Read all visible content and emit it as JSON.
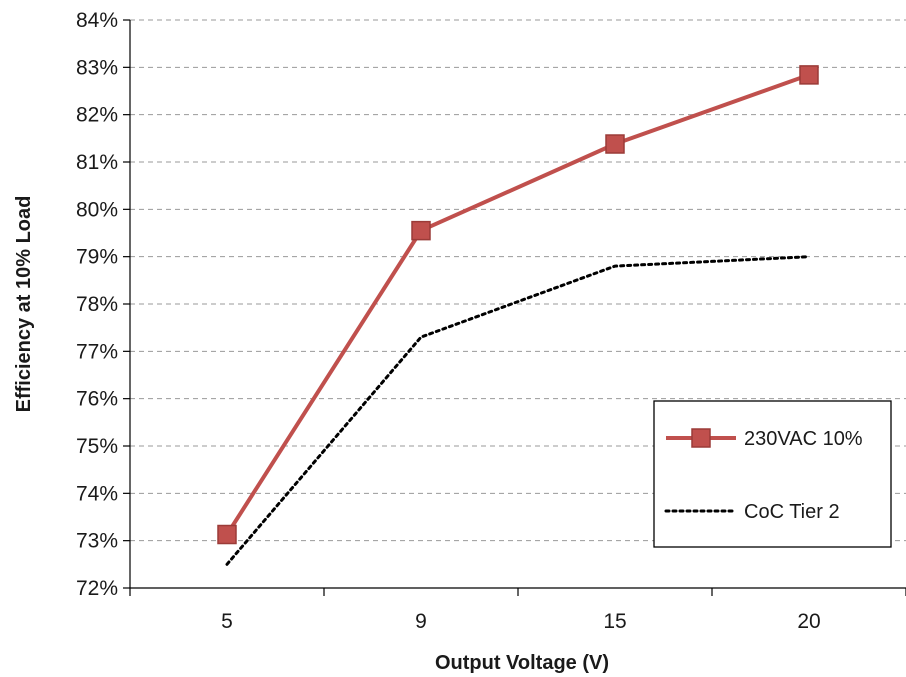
{
  "chart_data": {
    "type": "line",
    "title": "",
    "xlabel": "Output Voltage (V)",
    "ylabel": "Efficiency at 10% Load",
    "categories": [
      "5",
      "9",
      "15",
      "20"
    ],
    "ylim": [
      72,
      84
    ],
    "yticks": [
      72,
      73,
      74,
      75,
      76,
      77,
      78,
      79,
      80,
      81,
      82,
      83,
      84
    ],
    "ytick_labels": [
      "72%",
      "73%",
      "74%",
      "75%",
      "76%",
      "77%",
      "78%",
      "79%",
      "80%",
      "81%",
      "82%",
      "83%",
      "84%"
    ],
    "grid": "horizontal dashed",
    "legend_position": "bottom-right",
    "series": [
      {
        "name": "230VAC 10%",
        "values": [
          73.13,
          79.55,
          81.38,
          82.84
        ],
        "color": "#c0504d",
        "style": "solid",
        "marker": "square"
      },
      {
        "name": "CoC Tier 2",
        "values": [
          72.5,
          77.3,
          78.8,
          79.0
        ],
        "color": "#000000",
        "style": "dotted",
        "marker": "none"
      }
    ]
  }
}
